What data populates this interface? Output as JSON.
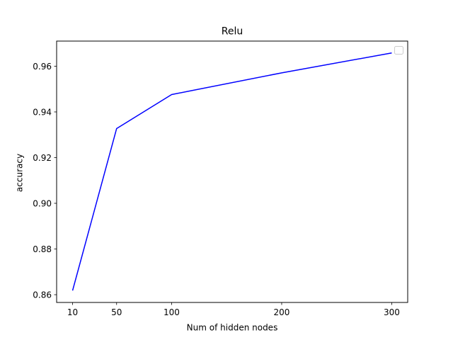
{
  "chart_data": {
    "type": "line",
    "title": "Relu",
    "xlabel": "Num of hidden nodes",
    "ylabel": "accuracy",
    "x": [
      10,
      50,
      100,
      200,
      300
    ],
    "series": [
      {
        "values": [
          0.8618,
          0.9327,
          0.9476,
          0.9571,
          0.9658
        ],
        "color": "#0000ff"
      }
    ],
    "xticks": [
      10,
      50,
      100,
      200,
      300
    ],
    "xtick_labels": [
      "10",
      "50",
      "100",
      "200",
      "300"
    ],
    "yticks": [
      0.86,
      0.88,
      0.9,
      0.92,
      0.94,
      0.96
    ],
    "ytick_labels": [
      "0.86",
      "0.88",
      "0.90",
      "0.92",
      "0.94",
      "0.96"
    ],
    "xlim": [
      -4.5,
      314.5
    ],
    "ylim": [
      0.8566,
      0.971
    ],
    "grid": false,
    "legend": {
      "placement": "top-right",
      "entries": []
    }
  }
}
